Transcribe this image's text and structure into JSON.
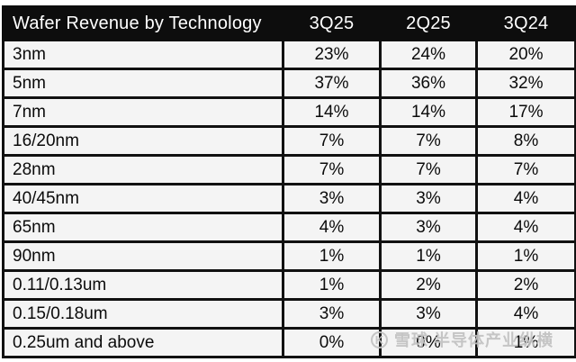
{
  "table": {
    "header": [
      "Wafer Revenue by Technology",
      "3Q25",
      "2Q25",
      "3Q24"
    ],
    "rows": [
      {
        "label": "3nm",
        "values": [
          "23%",
          "24%",
          "20%"
        ]
      },
      {
        "label": "5nm",
        "values": [
          "37%",
          "36%",
          "32%"
        ]
      },
      {
        "label": "7nm",
        "values": [
          "14%",
          "14%",
          "17%"
        ]
      },
      {
        "label": "16/20nm",
        "values": [
          "7%",
          "7%",
          "8%"
        ]
      },
      {
        "label": "28nm",
        "values": [
          "7%",
          "7%",
          "7%"
        ]
      },
      {
        "label": "40/45nm",
        "values": [
          "3%",
          "3%",
          "4%"
        ]
      },
      {
        "label": "65nm",
        "values": [
          "4%",
          "3%",
          "4%"
        ]
      },
      {
        "label": "90nm",
        "values": [
          "1%",
          "1%",
          "1%"
        ]
      },
      {
        "label": "0.11/0.13um",
        "values": [
          "1%",
          "2%",
          "2%"
        ]
      },
      {
        "label": "0.15/0.18um",
        "values": [
          "3%",
          "3%",
          "4%"
        ]
      },
      {
        "label": "0.25um and above",
        "values": [
          "0%",
          "0%",
          "1%"
        ]
      }
    ]
  },
  "watermark": {
    "logo": "snowball-icon",
    "logo_glyph": "K",
    "site": "雪球",
    "name": "半导体产业纵横"
  },
  "colors": {
    "header_bg": "#0d0d0d",
    "header_text": "#ffffff",
    "cell_bg": "#f4f4f4",
    "border": "#111111",
    "watermark": "#c2c2c2"
  },
  "chart_data": {
    "type": "table",
    "title": "Wafer Revenue by Technology",
    "unit": "%",
    "categories": [
      "3nm",
      "5nm",
      "7nm",
      "16/20nm",
      "28nm",
      "40/45nm",
      "65nm",
      "90nm",
      "0.11/0.13um",
      "0.15/0.18um",
      "0.25um and above"
    ],
    "series": [
      {
        "name": "3Q25",
        "values": [
          23,
          37,
          14,
          7,
          7,
          3,
          4,
          1,
          1,
          3,
          0
        ]
      },
      {
        "name": "2Q25",
        "values": [
          24,
          36,
          14,
          7,
          7,
          3,
          3,
          1,
          2,
          3,
          0
        ]
      },
      {
        "name": "3Q24",
        "values": [
          20,
          32,
          17,
          8,
          7,
          4,
          4,
          1,
          2,
          4,
          1
        ]
      }
    ]
  }
}
